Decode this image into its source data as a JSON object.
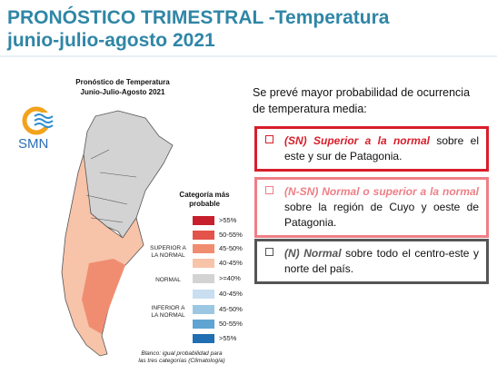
{
  "header": {
    "title": [
      "PRONÓSTICO TRIMESTRAL -Temperatura",
      "junio-julio-agosto 2021"
    ]
  },
  "map": {
    "title": [
      "Pronóstico de Temperatura",
      "Junio-Julio-Agosto 2021"
    ],
    "logo": "SMN",
    "legend": {
      "title": [
        "Categoría más",
        "probable"
      ],
      "entries": [
        {
          "label": ">55%",
          "color": "#c81f2d"
        },
        {
          "label": "50-55%",
          "color": "#e3534a"
        },
        {
          "label": "45-50%",
          "color": "#f08d70"
        },
        {
          "label": "40-45%",
          "color": "#f7c3a9"
        },
        {
          "label": ">=40%",
          "color": "#d3d3d3"
        },
        {
          "label": "40-45%",
          "color": "#c9def0"
        },
        {
          "label": "45-50%",
          "color": "#9cc7e2"
        },
        {
          "label": "50-55%",
          "color": "#5fa4d2"
        },
        {
          "label": ">55%",
          "color": "#1f6fb2"
        }
      ],
      "groups": [
        [
          "SUPERIOR A",
          "LA NORMAL"
        ],
        [
          "NORMAL"
        ],
        [
          "INFERIOR A",
          "LA NORMAL"
        ]
      ]
    },
    "footnote": [
      "Blanco: igual probabilidad para",
      "las tres categorías (Climatología)"
    ]
  },
  "forecast": {
    "intro": [
      "Se prevé mayor probabilidad de ocurrencia",
      "de temperatura media:"
    ],
    "boxes": [
      {
        "label": "(SN) Superior a la normal",
        "text": " sobre el este y sur de Patagonia.",
        "color": "#d81e2a"
      },
      {
        "label": "(N-SN) Normal o superior a la normal",
        "text": " sobre la región de Cuyo y oeste de Patagonia.",
        "color": "#ee7f86"
      },
      {
        "label": "(N) Normal",
        "text": " sobre todo el centro-este y norte del país.",
        "color": "#555555"
      }
    ]
  }
}
